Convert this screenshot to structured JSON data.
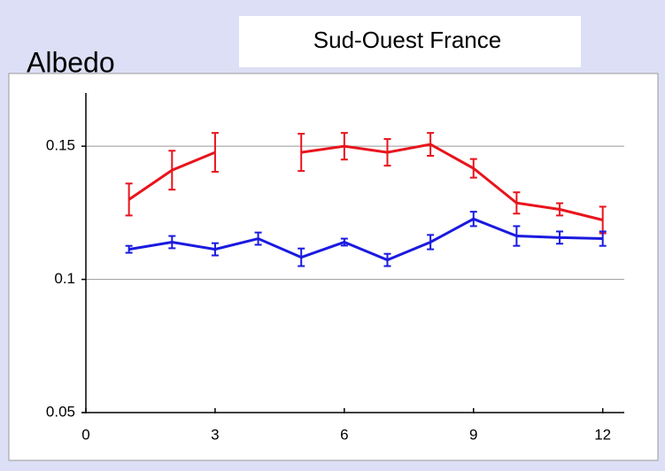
{
  "chart_data": {
    "type": "line",
    "title": "Sud-Ouest France",
    "ylabel": "Albedo",
    "x": [
      1,
      2,
      3,
      4,
      5,
      6,
      7,
      8,
      9,
      10,
      11,
      12
    ],
    "series": [
      {
        "color": "#e8141c",
        "values": [
          0.13,
          0.141,
          0.1477,
          null,
          0.1477,
          0.15,
          0.1477,
          0.1507,
          0.1417,
          0.1287,
          0.1263,
          0.1223
        ],
        "errors": [
          0.006,
          0.0073,
          0.0073,
          null,
          0.007,
          0.005,
          0.005,
          0.0043,
          0.0035,
          0.004,
          0.0023,
          0.005
        ]
      },
      {
        "color": "#1a1ae0",
        "values": [
          0.1113,
          0.114,
          0.1113,
          0.1153,
          0.1083,
          0.114,
          0.1073,
          0.114,
          0.1227,
          0.1163,
          0.1157,
          0.1153
        ],
        "errors": [
          0.0013,
          0.0023,
          0.0023,
          0.0023,
          0.0033,
          0.0013,
          0.0023,
          0.0027,
          0.0027,
          0.0037,
          0.0023,
          0.0027
        ]
      }
    ],
    "xlim": [
      0,
      12.5
    ],
    "xticks": [
      0,
      3,
      6,
      9,
      12
    ],
    "ylim": [
      0.05,
      0.17
    ],
    "yticks": [
      0.05,
      0.1,
      0.15
    ],
    "grid": true
  }
}
